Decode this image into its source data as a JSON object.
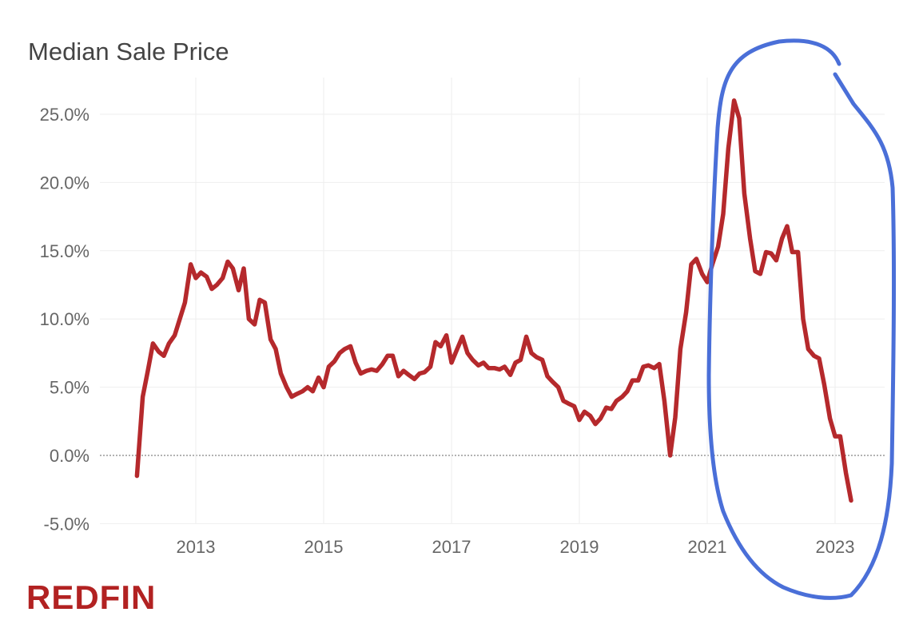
{
  "chart_data": {
    "type": "line",
    "title": "Median Sale Price",
    "xlabel": "",
    "ylabel": "",
    "ylim": [
      -5,
      25
    ],
    "xlim": [
      2012.0,
      2024.0
    ],
    "yticks": [
      {
        "value": 25,
        "label": "25.0%"
      },
      {
        "value": 20,
        "label": "20.0%"
      },
      {
        "value": 15,
        "label": "15.0%"
      },
      {
        "value": 10,
        "label": "10.0%"
      },
      {
        "value": 5,
        "label": "5.0%"
      },
      {
        "value": 0,
        "label": "0.0%"
      },
      {
        "value": -5,
        "label": "-5.0%"
      }
    ],
    "xticks": [
      {
        "value": 2013,
        "label": "2013"
      },
      {
        "value": 2015,
        "label": "2015"
      },
      {
        "value": 2017,
        "label": "2017"
      },
      {
        "value": 2019,
        "label": "2019"
      },
      {
        "value": 2021,
        "label": "2021"
      },
      {
        "value": 2023,
        "label": "2023"
      }
    ],
    "grid": true,
    "line_color": "#b5292c",
    "annotation_color": "#4a6fd8",
    "series": [
      {
        "values": [
          [
            2012.08,
            -1.5
          ],
          [
            2012.17,
            4.3
          ],
          [
            2012.25,
            6.2
          ],
          [
            2012.33,
            8.2
          ],
          [
            2012.42,
            7.6
          ],
          [
            2012.5,
            7.3
          ],
          [
            2012.58,
            8.2
          ],
          [
            2012.67,
            8.8
          ],
          [
            2012.75,
            10.0
          ],
          [
            2012.83,
            11.2
          ],
          [
            2012.92,
            14.0
          ],
          [
            2013.0,
            13.0
          ],
          [
            2013.08,
            13.4
          ],
          [
            2013.17,
            13.1
          ],
          [
            2013.25,
            12.2
          ],
          [
            2013.33,
            12.5
          ],
          [
            2013.42,
            13.0
          ],
          [
            2013.5,
            14.2
          ],
          [
            2013.58,
            13.7
          ],
          [
            2013.67,
            12.1
          ],
          [
            2013.75,
            13.7
          ],
          [
            2013.83,
            10.0
          ],
          [
            2013.92,
            9.6
          ],
          [
            2014.0,
            11.4
          ],
          [
            2014.08,
            11.2
          ],
          [
            2014.17,
            8.5
          ],
          [
            2014.25,
            7.8
          ],
          [
            2014.33,
            6.0
          ],
          [
            2014.42,
            5.0
          ],
          [
            2014.5,
            4.3
          ],
          [
            2014.58,
            4.5
          ],
          [
            2014.67,
            4.7
          ],
          [
            2014.75,
            5.0
          ],
          [
            2014.83,
            4.7
          ],
          [
            2014.92,
            5.7
          ],
          [
            2015.0,
            5.0
          ],
          [
            2015.08,
            6.5
          ],
          [
            2015.17,
            6.9
          ],
          [
            2015.25,
            7.5
          ],
          [
            2015.33,
            7.8
          ],
          [
            2015.42,
            8.0
          ],
          [
            2015.5,
            6.8
          ],
          [
            2015.58,
            6.0
          ],
          [
            2015.67,
            6.2
          ],
          [
            2015.75,
            6.3
          ],
          [
            2015.83,
            6.2
          ],
          [
            2015.92,
            6.7
          ],
          [
            2016.0,
            7.3
          ],
          [
            2016.08,
            7.3
          ],
          [
            2016.17,
            5.8
          ],
          [
            2016.25,
            6.2
          ],
          [
            2016.33,
            5.9
          ],
          [
            2016.42,
            5.6
          ],
          [
            2016.5,
            6.0
          ],
          [
            2016.58,
            6.1
          ],
          [
            2016.67,
            6.5
          ],
          [
            2016.75,
            8.3
          ],
          [
            2016.83,
            8.0
          ],
          [
            2016.92,
            8.8
          ],
          [
            2017.0,
            6.8
          ],
          [
            2017.08,
            7.7
          ],
          [
            2017.17,
            8.7
          ],
          [
            2017.25,
            7.5
          ],
          [
            2017.33,
            7.0
          ],
          [
            2017.42,
            6.6
          ],
          [
            2017.5,
            6.8
          ],
          [
            2017.58,
            6.4
          ],
          [
            2017.67,
            6.4
          ],
          [
            2017.75,
            6.3
          ],
          [
            2017.83,
            6.5
          ],
          [
            2017.92,
            5.9
          ],
          [
            2018.0,
            6.8
          ],
          [
            2018.08,
            7.0
          ],
          [
            2018.17,
            8.7
          ],
          [
            2018.25,
            7.5
          ],
          [
            2018.33,
            7.2
          ],
          [
            2018.42,
            7.0
          ],
          [
            2018.5,
            5.8
          ],
          [
            2018.58,
            5.4
          ],
          [
            2018.67,
            5.0
          ],
          [
            2018.75,
            4.0
          ],
          [
            2018.83,
            3.8
          ],
          [
            2018.92,
            3.6
          ],
          [
            2019.0,
            2.6
          ],
          [
            2019.08,
            3.2
          ],
          [
            2019.17,
            2.9
          ],
          [
            2019.25,
            2.3
          ],
          [
            2019.33,
            2.7
          ],
          [
            2019.42,
            3.5
          ],
          [
            2019.5,
            3.4
          ],
          [
            2019.58,
            4.0
          ],
          [
            2019.67,
            4.3
          ],
          [
            2019.75,
            4.7
          ],
          [
            2019.83,
            5.5
          ],
          [
            2019.92,
            5.5
          ],
          [
            2020.0,
            6.5
          ],
          [
            2020.08,
            6.6
          ],
          [
            2020.17,
            6.4
          ],
          [
            2020.25,
            6.7
          ],
          [
            2020.33,
            4.0
          ],
          [
            2020.42,
            0.0
          ],
          [
            2020.5,
            2.8
          ],
          [
            2020.58,
            7.8
          ],
          [
            2020.67,
            10.5
          ],
          [
            2020.75,
            14.0
          ],
          [
            2020.83,
            14.4
          ],
          [
            2020.92,
            13.3
          ],
          [
            2021.0,
            12.7
          ],
          [
            2021.08,
            14.0
          ],
          [
            2021.17,
            15.3
          ],
          [
            2021.25,
            17.7
          ],
          [
            2021.33,
            22.5
          ],
          [
            2021.42,
            26.0
          ],
          [
            2021.5,
            24.7
          ],
          [
            2021.58,
            19.2
          ],
          [
            2021.67,
            15.9
          ],
          [
            2021.75,
            13.5
          ],
          [
            2021.83,
            13.3
          ],
          [
            2021.92,
            14.9
          ],
          [
            2022.0,
            14.8
          ],
          [
            2022.08,
            14.3
          ],
          [
            2022.17,
            15.9
          ],
          [
            2022.25,
            16.8
          ],
          [
            2022.33,
            14.9
          ],
          [
            2022.42,
            14.9
          ],
          [
            2022.5,
            10.0
          ],
          [
            2022.58,
            7.8
          ],
          [
            2022.67,
            7.3
          ],
          [
            2022.75,
            7.1
          ],
          [
            2022.83,
            5.2
          ],
          [
            2022.92,
            2.7
          ],
          [
            2023.0,
            1.4
          ],
          [
            2023.08,
            1.4
          ],
          [
            2023.17,
            -1.3
          ],
          [
            2023.25,
            -3.3
          ]
        ]
      }
    ],
    "logo": "REDFIN"
  }
}
